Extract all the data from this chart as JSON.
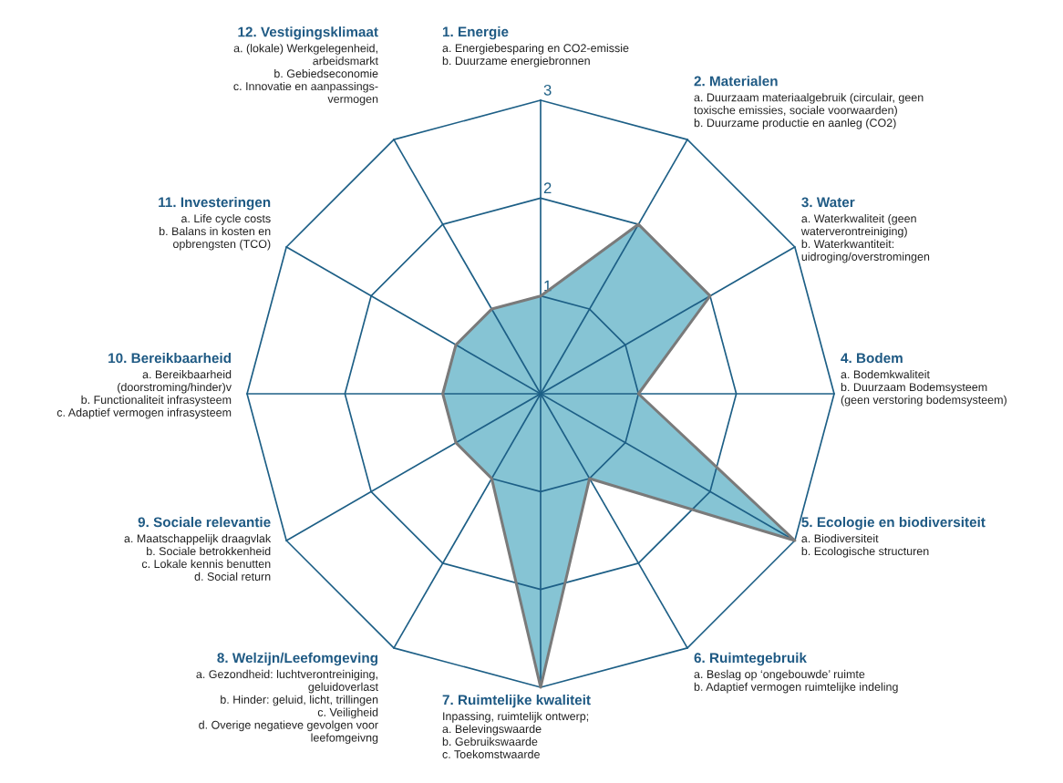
{
  "chart_data": {
    "type": "radar",
    "categories": [
      "1. Energie\na. Energiebesparing en CO2-emissie\nb. Duurzame energiebronnen",
      "2. Materialen\na. Duurzaam materiaalgebruik (circulair, geen\ntoxische emissies, sociale voorwaarden)\nb. Duurzame productie en aanleg (CO2)",
      "3. Water\na. Waterkwaliteit (geen\nwaterverontreiniging)\nb. Waterkwantiteit:\nuidroging/overstromingen",
      "4. Bodem\na. Bodemkwaliteit\nb. Duurzaam Bodemsysteem\n(geen verstoring bodemsysteem)",
      "5. Ecologie en biodiversiteit\na. Biodiversiteit\nb. Ecologische structuren",
      "6. Ruimtegebruik\na. Beslag op ‘ongebouwde’ ruimte\nb. Adaptief vermogen ruimtelijke indeling",
      "7. Ruimtelijke kwaliteit\nInpassing, ruimtelijk ontwerp;\na. Belevingswaarde\nb. Gebruikswaarde\nc. Toekomstwaarde",
      "8. Welzijn/Leefomgeving\na. Gezondheid: luchtverontreiniging,\ngeluidoverlast\nb. Hinder: geluid, licht, trillingen\nc. Veiligheid\nd. Overige negatieve gevolgen voor\nleefomgeivng",
      "9. Sociale relevantie\na. Maatschappelijk draagvlak\nb. Sociale betrokkenheid\nc. Lokale kennis benutten\nd. Social return",
      "10. Bereikbaarheid\na. Bereikbaarheid\n(doorstroming/hinder)v\nb. Functionaliteit infrasysteem\nc. Adaptief vermogen infrasysteem",
      "11. Investeringen\na. Life cycle costs\nb. Balans in kosten en\nopbrengsten (TCO)",
      "12. Vestigingsklimaat\na. (lokale) Werkgelegenheid,\narbeidsmarkt\nb. Gebiedseconomie\nc. Innovatie en aanpassings-\nvermogen"
    ],
    "series": [
      {
        "color": "#86c4d4",
        "values": [
          1,
          2,
          2,
          1,
          3,
          1,
          3,
          1,
          1,
          1,
          1,
          1
        ]
      }
    ],
    "ylim": [
      0,
      3
    ],
    "yticks": [
      1,
      2,
      3
    ],
    "grid": true
  }
}
